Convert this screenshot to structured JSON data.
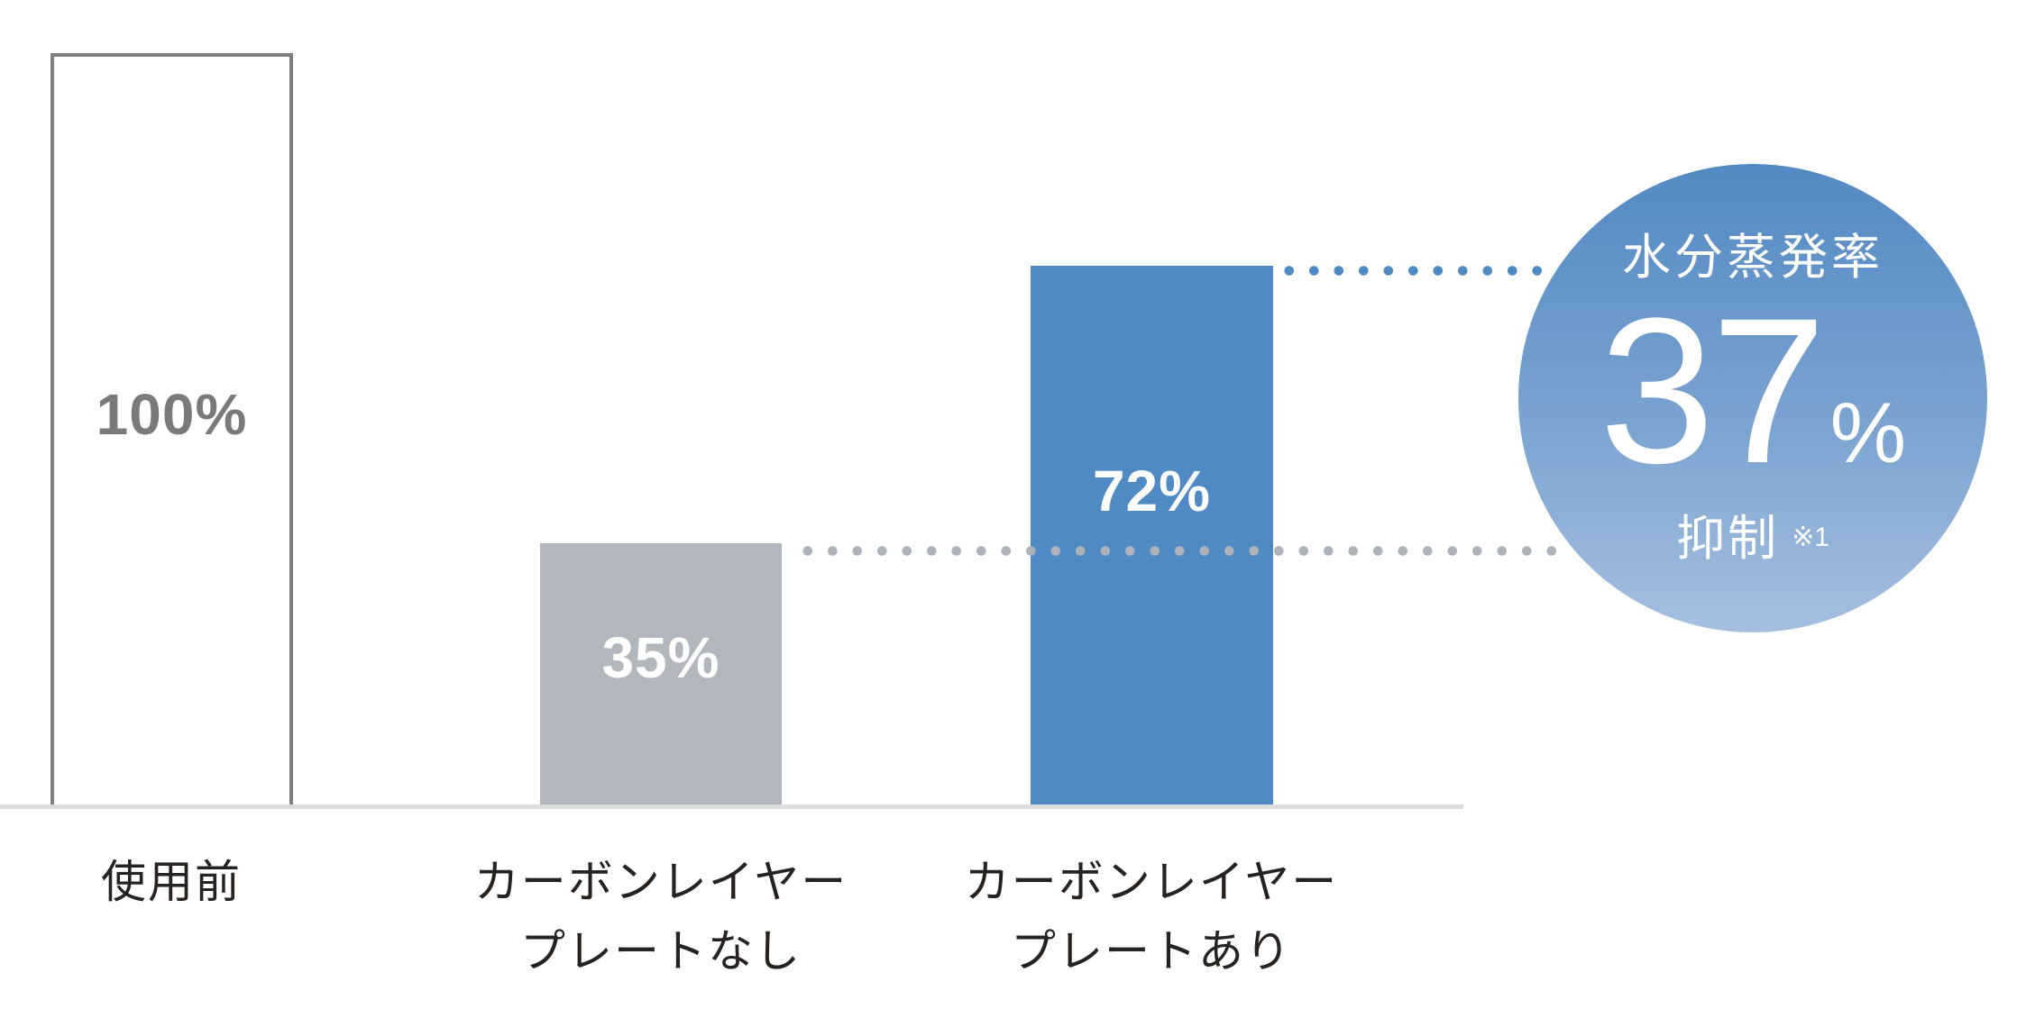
{
  "chart_data": {
    "type": "bar",
    "title": "",
    "categories": [
      "使用前",
      "カーボンレイヤー プレートなし",
      "カーボンレイヤー プレートあり"
    ],
    "values": [
      100,
      35,
      72
    ],
    "unit": "%",
    "ylim": [
      0,
      100
    ],
    "grid": false,
    "legend": "none",
    "annotation": {
      "label": "水分蒸発率",
      "value": 37,
      "unit": "%",
      "action": "抑制",
      "footnote_marker": "※1",
      "connects": "dotted lines from tops of 35% and 72% bars to badge"
    }
  },
  "bars": [
    {
      "value_label": "100%",
      "category_line1": "使用前",
      "category_line2": "",
      "fill": "#FFFFFF"
    },
    {
      "value_label": "35%",
      "category_line1": "カーボンレイヤー",
      "category_line2": "プレートなし",
      "fill": "#B2B7BD"
    },
    {
      "value_label": "72%",
      "category_line1": "カーボンレイヤー",
      "category_line2": "プレートあり",
      "fill": "#4F8AC4"
    }
  ],
  "badge": {
    "title": "水分蒸発率",
    "value": "37",
    "percent_sign": "%",
    "action": "抑制",
    "footnote": "※1"
  },
  "colors": {
    "accent_blue": "#4F8AC4",
    "bar_gray": "#B2B7BD",
    "bar_outline_gray": "#7F7F7F",
    "value_text_gray": "#7A7A7A",
    "axis_line": "#DCDCDC",
    "dot_gray": "#AEB3BA",
    "category_text": "#262220",
    "circle_gradient_top": "#5389C4",
    "circle_gradient_bottom": "#A6BFE0"
  }
}
